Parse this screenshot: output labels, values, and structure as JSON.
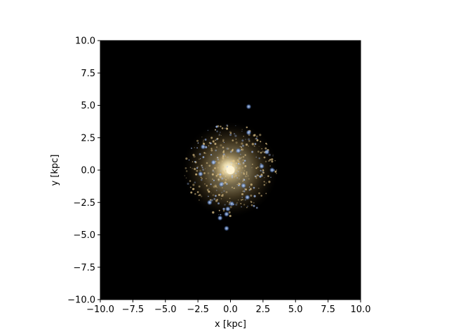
{
  "chart_data": {
    "type": "scatter",
    "title": "",
    "xlabel": "x [kpc]",
    "ylabel": "y [kpc]",
    "xlim": [
      -10,
      10
    ],
    "ylim": [
      -10,
      10
    ],
    "xticks": [
      -10,
      -7.5,
      -5,
      -2.5,
      0,
      2.5,
      5,
      7.5,
      10
    ],
    "yticks": [
      -10,
      -7.5,
      -5,
      -2.5,
      0,
      2.5,
      5,
      7.5,
      10
    ],
    "xtick_labels": [
      "−10.0",
      "−7.5",
      "−5.0",
      "−2.5",
      "0.0",
      "2.5",
      "5.0",
      "7.5",
      "10.0"
    ],
    "ytick_labels": [
      "−10.0",
      "−7.5",
      "−5.0",
      "−2.5",
      "0.0",
      "2.5",
      "5.0",
      "7.5",
      "10.0"
    ],
    "grid": false,
    "background_color": "#000000",
    "colors": {
      "core": "#fff4d6",
      "halo": "#c8a560",
      "young_clumps": "#8fb8ff"
    },
    "series": [
      {
        "values": [
          {
            "x": 0.0,
            "y": 0.0
          },
          {
            "x": 1.4,
            "y": 4.9
          },
          {
            "x": 1.4,
            "y": 2.9
          },
          {
            "x": -2.1,
            "y": 1.8
          },
          {
            "x": -2.3,
            "y": -0.3
          },
          {
            "x": 2.8,
            "y": 1.4
          },
          {
            "x": 3.2,
            "y": 0.0
          },
          {
            "x": 2.4,
            "y": 0.3
          },
          {
            "x": 1.0,
            "y": -1.2
          },
          {
            "x": -1.6,
            "y": -2.5
          },
          {
            "x": -0.2,
            "y": -3.0
          },
          {
            "x": 0.1,
            "y": -2.6
          },
          {
            "x": -0.3,
            "y": -3.4
          },
          {
            "x": -0.8,
            "y": -3.7
          },
          {
            "x": -0.3,
            "y": -4.5
          },
          {
            "x": 1.3,
            "y": -2.1
          },
          {
            "x": -1.3,
            "y": 0.6
          },
          {
            "x": 0.6,
            "y": 1.5
          },
          {
            "x": -0.7,
            "y": -1.1
          }
        ]
      }
    ]
  }
}
